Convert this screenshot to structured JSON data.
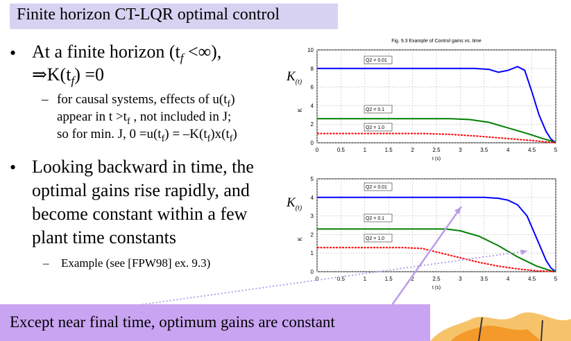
{
  "slide": {
    "title": "Finite horizon CT-LQR optimal control",
    "bullet1_line1": "At a finite horizon (t",
    "bullet1_sub": "f",
    "bullet1_line1_end": " <∞),",
    "bullet1_line2": "⇒K(t",
    "bullet1_line2_sub": "f",
    "bullet1_line2_end": ") =0",
    "sub1_line1": "for causal systems, effects of u(t",
    "sub1_line1_sub": "f",
    "sub1_line1_end": ")",
    "sub1_line2": "appear in t >t",
    "sub1_line2_sub": "f",
    "sub1_line2_end": " , not included in J;",
    "sub1_line3": "so for min. J, 0 =u(t",
    "sub1_line3_sub": "f",
    "sub1_line3_end": ") = –K(t",
    "sub1_line3_sub2": "f",
    "sub1_line3_end2": ")x(t",
    "sub1_line3_sub3": "f",
    "sub1_line3_end3": ")",
    "bullet2_lines": [
      "Looking backward in time, the",
      "optimal gains rise rapidly, and",
      "become constant within a few",
      "plant time constants"
    ],
    "example": "Example (see [FPW98] ex. 9.3)",
    "bottom": "Except near final time, optimum gains are constant",
    "k_label_top": "K",
    "k_label_bottom": "K",
    "k_sub": "(t)"
  },
  "chart_data": [
    {
      "type": "line",
      "title": "Fig. 9.3  Example of Control gains vs. time",
      "xlabel": "t (s)",
      "ylabel": "K",
      "xlim": [
        0,
        5
      ],
      "ylim": [
        0,
        10
      ],
      "xticks": [
        "0",
        "0.5",
        "1",
        "1.5",
        "2",
        "2.5",
        "3",
        "3.5",
        "4",
        "4.5",
        "5"
      ],
      "yticks": [
        "0",
        "2",
        "4",
        "6",
        "8",
        "10"
      ],
      "grid": true,
      "series": [
        {
          "name": "Q2 = 0.01",
          "color": "#0000ff",
          "x": [
            0,
            3.3,
            3.6,
            3.8,
            4.0,
            4.2,
            4.35,
            4.5,
            4.65,
            4.8,
            4.9,
            5.0
          ],
          "y": [
            8,
            8,
            7.9,
            7.6,
            7.8,
            8.2,
            7.8,
            5.5,
            3.0,
            1.2,
            0.4,
            0
          ]
        },
        {
          "name": "Q2 = 0.1",
          "color": "#008000",
          "x": [
            0,
            2.8,
            3.2,
            3.6,
            4.0,
            4.4,
            4.7,
            4.9,
            5.0
          ],
          "y": [
            2.6,
            2.6,
            2.5,
            2.2,
            1.6,
            1.0,
            0.5,
            0.2,
            0
          ]
        },
        {
          "name": "Q2 = 1.0",
          "color": "#ff0000",
          "x": [
            0,
            2.2,
            2.8,
            3.4,
            4.0,
            4.5,
            4.8,
            5.0
          ],
          "y": [
            1.0,
            1.0,
            0.9,
            0.7,
            0.45,
            0.25,
            0.1,
            0
          ]
        }
      ]
    },
    {
      "type": "line",
      "title": "",
      "xlabel": "t (s)",
      "ylabel": "K",
      "xlim": [
        0,
        5
      ],
      "ylim": [
        0,
        5
      ],
      "xticks": [
        "0",
        "0.5",
        "1",
        "1.5",
        "2",
        "2.5",
        "3",
        "3.5",
        "4",
        "4.5",
        "5"
      ],
      "yticks": [
        "0",
        "1",
        "2",
        "3",
        "4",
        "5"
      ],
      "grid": true,
      "series": [
        {
          "name": "Q2 = 0.01",
          "color": "#0000ff",
          "x": [
            0,
            3.5,
            3.8,
            4.0,
            4.2,
            4.4,
            4.6,
            4.8,
            4.9,
            5.0
          ],
          "y": [
            4,
            4,
            3.95,
            3.85,
            3.6,
            3.0,
            1.8,
            0.6,
            0.2,
            0
          ]
        },
        {
          "name": "Q2 = 0.1",
          "color": "#008000",
          "x": [
            0,
            2.7,
            3.0,
            3.4,
            3.8,
            4.2,
            4.6,
            4.9,
            5.0
          ],
          "y": [
            2.3,
            2.3,
            2.2,
            1.9,
            1.4,
            0.8,
            0.3,
            0.05,
            0
          ]
        },
        {
          "name": "Q2 = 1.0",
          "color": "#ff0000",
          "x": [
            0,
            1.8,
            2.2,
            2.6,
            3.0,
            3.4,
            3.8,
            4.2,
            4.6,
            5.0
          ],
          "y": [
            1.3,
            1.3,
            1.25,
            1.0,
            0.75,
            0.5,
            0.3,
            0.15,
            0.05,
            0
          ]
        }
      ]
    }
  ]
}
